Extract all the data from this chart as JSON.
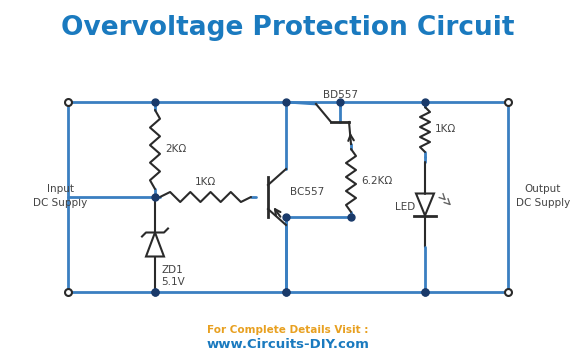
{
  "title": "Overvoltage Protection Circuit",
  "title_color": "#1a7abf",
  "title_fontsize": 19,
  "circuit_color": "#3a7fc1",
  "line_width": 2.0,
  "background_color": "#ffffff",
  "footer_text1": "For Complete Details Visit :",
  "footer_text2": "www.Circuits-DIY.com",
  "footer_color1": "#e8a020",
  "footer_color2": "#1a7abf",
  "component_color": "#2a2a2a",
  "label_color": "#444444",
  "dot_color": "#1a3a6a",
  "figsize": [
    5.76,
    3.6
  ],
  "dpi": 100
}
